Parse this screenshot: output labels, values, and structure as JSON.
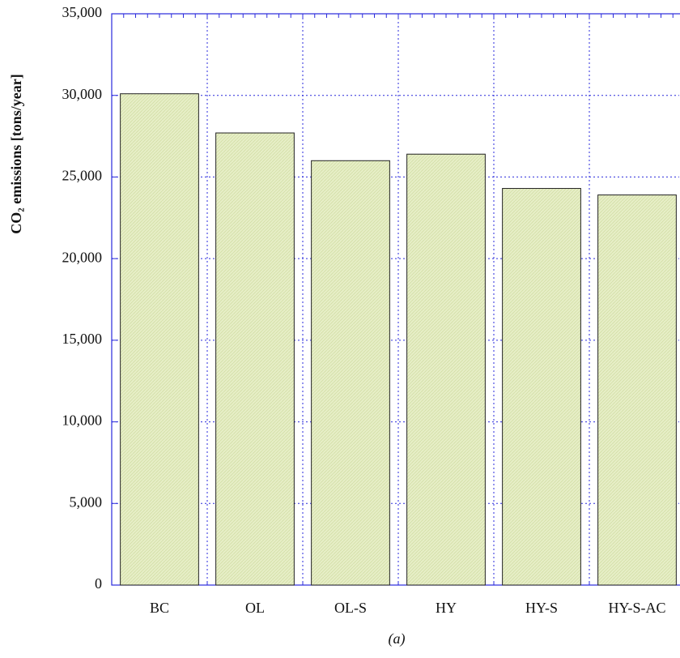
{
  "chart_data": {
    "type": "bar",
    "ylabel": "CO₂ emissions [tons/year]",
    "caption": "(a)",
    "categories": [
      "BC",
      "OL",
      "OL-S",
      "HY",
      "HY-S",
      "HY-S-AC"
    ],
    "values": [
      30100,
      27700,
      26000,
      26400,
      24300,
      23900
    ],
    "color": "#e3ecc0",
    "ylim": [
      0,
      35000
    ],
    "yticks": [
      0,
      {
        "value": 5000,
        "label": "5,000"
      },
      {
        "value": 10000,
        "label": "10,000"
      },
      {
        "value": 15000,
        "label": "15,000"
      },
      {
        "value": 20000,
        "label": "20,000"
      },
      {
        "value": 25000,
        "label": "25,000"
      },
      {
        "value": 30000,
        "label": "30,000"
      },
      {
        "value": 35000,
        "label": "35,000"
      }
    ],
    "grid": true
  }
}
